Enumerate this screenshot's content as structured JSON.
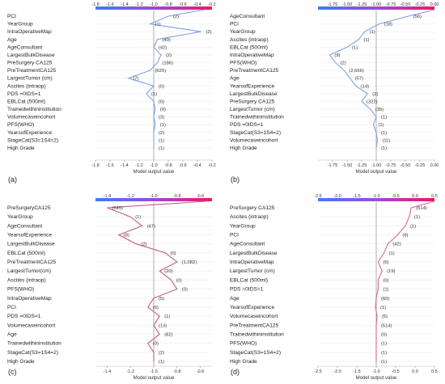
{
  "colors": {
    "colorbar_left": "#3d7df2",
    "colorbar_mid": "#9b4bd6",
    "colorbar_right": "#f0166c",
    "line": "#7fa3e6",
    "line_c": "#c45a8a",
    "line_d": "#d46a9a",
    "refline": "#9a9a9a"
  },
  "chart_data": [
    {
      "panel": "(a)",
      "type": "line",
      "xlabel": "Model output value",
      "xlim": [
        -1.8,
        -0.2
      ],
      "xticks": [
        "-1.8",
        "-1.6",
        "-1.4",
        "-1.2",
        "-1.0",
        "-0.8",
        "-0.6",
        "-0.4",
        "-0.2"
      ],
      "features": [
        "PCI",
        "YearGroup",
        "IntraOperativeMap",
        "Age",
        "AgeConsultant",
        "LargestBulkDisease",
        "PreSurgery CA125",
        "PreTreatmentCA125",
        "LargestTumor (cm)",
        "Ascites (intraop)",
        "PDS =0IDS=1",
        "EBLCat (500ml)",
        "Trainedwithininstitution",
        "Volumecaseincohort",
        "PFS(WHO)",
        "YearsofExperience",
        "StageCat(S3=1S4=2)",
        "High Grade"
      ],
      "feature_values": [
        "(2)",
        "(1)",
        "(2)",
        "(49)",
        "(42)",
        "(2)",
        "(186)",
        "(625)",
        "(7)",
        "(0)",
        "(1)",
        "(0)",
        "(0)",
        "(3)",
        "(1)",
        "(2)",
        "(1)",
        "(1)"
      ],
      "path": [
        -0.3,
        -0.8,
        -1.05,
        -0.35,
        -0.95,
        -1.0,
        -0.9,
        -0.95,
        -1.05,
        -1.35,
        -1.0,
        -1.1,
        -1.0,
        -0.98,
        -1.0,
        -0.98,
        -1.0,
        -1.0,
        -1.0
      ],
      "base_value": -1.0
    },
    {
      "panel": "(b)",
      "type": "line",
      "xlabel": "Model output value",
      "xlim": [
        -2.0,
        0.0
      ],
      "xticks": [
        "-1.75",
        "-1.50",
        "-1.25",
        "-1.00",
        "-0.75",
        "-0.50",
        "-0.25",
        "0.00"
      ],
      "features": [
        "AgeConsultant",
        "PCI",
        "YearGroup",
        "Ascites (intraop)",
        "EBLCat (500ml)",
        "IntraOperativeMap",
        "PFS(WHO)",
        "PreTreatmentCA125",
        "Age",
        "YearsofExperience",
        "LargestBulkDisease",
        "PreSurgery CA125",
        "LargestTumor (cm)",
        "Trainedwithininstitution",
        "PDS =0IDS=1",
        "StageCat(S3=1S4=2)",
        "Volumecaseincohort",
        "High Grade"
      ],
      "feature_values": [
        "(56)",
        "(18)",
        "(1)",
        "(1)",
        "(1)",
        "(9)",
        "(2)",
        "(2,666)",
        "(57)",
        "(14)",
        "(2)",
        "(322)",
        "(35)",
        "(1)",
        "(1)",
        "(1)",
        "(11)",
        "(1)"
      ],
      "path": [
        0.0,
        -0.45,
        -0.95,
        -1.2,
        -1.3,
        -1.5,
        -1.8,
        -1.7,
        -1.55,
        -1.45,
        -1.35,
        -1.15,
        -1.25,
        -1.1,
        -1.0,
        -1.05,
        -1.0,
        -0.98,
        -1.0
      ],
      "base_value": -1.0
    },
    {
      "panel": "(c)",
      "type": "line",
      "xlabel": "Model output value",
      "xlim": [
        -1.5,
        -0.5
      ],
      "xticks": [
        "-1.4",
        "-1.2",
        "-1.0",
        "-0.8",
        "-0.6"
      ],
      "features": [
        "PreSurgeryCA125",
        "YearGroup",
        "AgeConsultant",
        "YearsofExperience",
        "LargestBulkDisease",
        "EBLCat (500ml)",
        "PreTreatmentCA125",
        "LargestTumor(cm)",
        "Ascites (intraop)",
        "PFS(WHO)",
        "IntraOperativeMap",
        "PCI",
        "PDS =0IDS=1",
        "Volumecaseincohort",
        "Age",
        "Trainedwithininstitution",
        "StageCat(S3=1S4=2)",
        "High Grade"
      ],
      "feature_values": [
        "(545)",
        "(1)",
        "(47)",
        "(8)",
        "(2)",
        "(0)",
        "(1,082)",
        "(20)",
        "(0)",
        "(0)",
        "(5)",
        "(6)",
        "(1)",
        "(13)",
        "(82)",
        "(0)",
        "(2)",
        "(1)"
      ],
      "path": [
        -0.55,
        -1.4,
        -1.2,
        -1.1,
        -1.3,
        -1.15,
        -0.9,
        -0.8,
        -0.95,
        -0.85,
        -0.8,
        -1.0,
        -1.05,
        -0.95,
        -1.0,
        -0.95,
        -1.05,
        -1.0,
        -1.0
      ],
      "base_value": -1.0
    },
    {
      "panel": "(d)",
      "type": "line",
      "xlabel": "Model output value",
      "xlim": [
        -2.5,
        0.5
      ],
      "xticks": [
        "-2.5",
        "-2.0",
        "-1.5",
        "-1.0",
        "-0.5",
        "0.0",
        "0.5"
      ],
      "features": [
        "PreSurgery CA125",
        "Ascites (intraop)",
        "YearGroup",
        "PCI",
        "AgeConsultant",
        "LargestBulkDisease",
        "IntraOperativeMap",
        "LargestTumor (cm)",
        "EBLCat (500ml)",
        "PDS =0IDS=1",
        "Age",
        "YearsofExperience",
        "Volumecaseincohort",
        "PreTreatmentCA125",
        "Trainedwithininstitution",
        "PFS(WHO)",
        "StageCat(S3=1S4=2)",
        "High Grade"
      ],
      "feature_values": [
        "(514)",
        "(1)",
        "(1)",
        "(8)",
        "(42)",
        "(1)",
        "(6)",
        "(19)",
        "(0)",
        "(1)",
        "(60)",
        "(1)",
        "(5)",
        "(514)",
        "(0)",
        "(1)",
        "(1)",
        "(1)"
      ],
      "path": [
        0.5,
        -0.1,
        -0.15,
        -0.25,
        -0.45,
        -0.7,
        -0.8,
        -0.95,
        -0.85,
        -0.95,
        -0.95,
        -1.0,
        -1.02,
        -0.98,
        -1.0,
        -1.0,
        -1.0,
        -1.0,
        -1.0
      ],
      "base_value": -1.0
    }
  ]
}
